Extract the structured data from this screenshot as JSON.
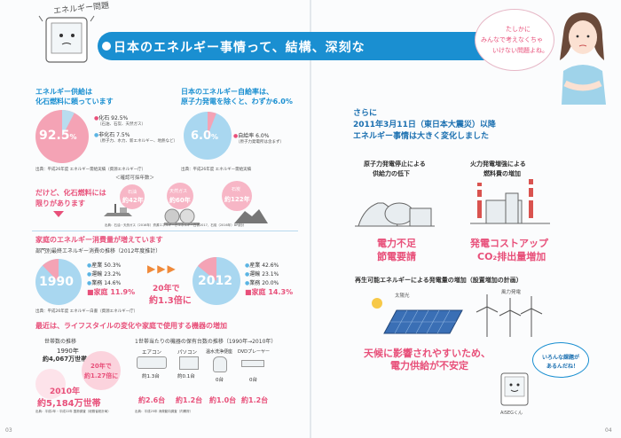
{
  "header": {
    "tab": "エネルギー問題",
    "title": "日本のエネルギー事情って、結構、深刻なんです。",
    "speech": [
      "たしかに",
      "みんなで考えなくちゃ",
      "いけない問題よね。"
    ]
  },
  "supply": {
    "title": [
      "エネルギー供給は",
      "化石燃料に頼っています"
    ],
    "pie_label": "92.5",
    "pie_unit": "%",
    "fossil": "化石 92.5%",
    "fossil_sub": "（石油、石炭、天然ガス）",
    "nonfossil": "非化石 7.5%",
    "nonfossil_sub": "（原子力、水力、新エネルギー、地熱など）",
    "source": "出典：平成26年度 エネルギー需給実績（資源エネルギー庁）",
    "warn": [
      "だけど、化石燃料には",
      "限りがあります"
    ],
    "reserve_title": "＜確認可採年数＞",
    "reserves": [
      {
        "name": "石油",
        "years": "約42年"
      },
      {
        "name": "天然ガス",
        "years": "約60年"
      },
      {
        "name": "石炭",
        "years": "約122年"
      }
    ],
    "reserve_source": "出典：石油・天然ガス（2016年）資源エネルギー庁エネルギー白書2017、石炭（2016年）BP統計"
  },
  "selfsuff": {
    "title": [
      "日本のエネルギー自給率は、",
      "原子力発電を除くと、わずか6.0%"
    ],
    "pie_label": "6.0",
    "pie_unit": "%",
    "rate": "自給率 6.0%",
    "rate_sub": "（原子力発電所は含まず）",
    "source": "出典：平成26年度 エネルギー需給実績"
  },
  "consumption": {
    "title": "家庭のエネルギー消費量が増えています",
    "subtitle": "部門別最終エネルギー消費の推移（2012年度推計）",
    "y1990": "1990",
    "y2012": "2012",
    "y1990_items": [
      {
        "name": "産業",
        "val": "50.3%"
      },
      {
        "name": "運輸",
        "val": "23.2%"
      },
      {
        "name": "業務",
        "val": "14.6%"
      },
      {
        "name": "家庭",
        "val": "11.9%"
      }
    ],
    "y2012_items": [
      {
        "name": "産業",
        "val": "42.6%"
      },
      {
        "name": "運輸",
        "val": "23.1%"
      },
      {
        "name": "業務",
        "val": "20.0%"
      },
      {
        "name": "家庭",
        "val": "14.3%"
      }
    ],
    "arrows": "▶▶▶",
    "growth": [
      "20年で",
      "約1.3倍に"
    ],
    "source": "出典：平成26年度 エネルギー白書（資源エネルギー庁）"
  },
  "lifestyle": {
    "title": "最近は、ライフスタイルの変化や家庭で使用する機器の増加",
    "households_title": "世帯数の推移",
    "h1990_year": "1990年",
    "h1990": "約4,067万世帯",
    "h_growth": [
      "20年で",
      "約1.27倍に"
    ],
    "h2010_year": "2010年",
    "h2010": "約5,184万世帯",
    "h_source": "出典：平成2年・平成22年 国勢調査（総務省統計局）",
    "devices_title": "1世帯当たりの機器の保有台数の推移（1990年→2010年）",
    "devices": [
      {
        "name": "エアコン",
        "from": "約1.3台",
        "to": "約2.6台"
      },
      {
        "name": "パソコン",
        "from": "約0.1台",
        "to": "約1.2台"
      },
      {
        "name": "温水洗浄便座",
        "from": "0台",
        "to": "約1.0台"
      },
      {
        "name": "DVDプレーヤー",
        "from": "0台",
        "to": "約1.2台"
      }
    ],
    "d_source": "出典：平成25年 消費動向調査（内閣府）"
  },
  "right": {
    "intro": [
      "さらに",
      "2011年3月11日（東日本大震災）以降",
      "エネルギー事情は大きく変化しました"
    ],
    "left_case": {
      "title": [
        "原子力発電停止による",
        "供給力の低下"
      ],
      "result": [
        "電力不足",
        "節電要請"
      ]
    },
    "right_case": {
      "title": [
        "火力発電増強による",
        "燃料費の増加"
      ],
      "result": [
        "発電コストアップ",
        "CO₂排出量増加"
      ]
    },
    "renew_title": "再生可能エネルギーによる発電量の増加（設置増加の計画）",
    "solar": "太陽光",
    "wind": "風力発電",
    "renew_result": [
      "天候に影響されやすいため、",
      "電力供給が不安定"
    ],
    "char_speech": [
      "いろんな課題が",
      "あるんだね！"
    ],
    "char_name": "AiSEGくん"
  },
  "page_left": "03",
  "page_right": "04"
}
